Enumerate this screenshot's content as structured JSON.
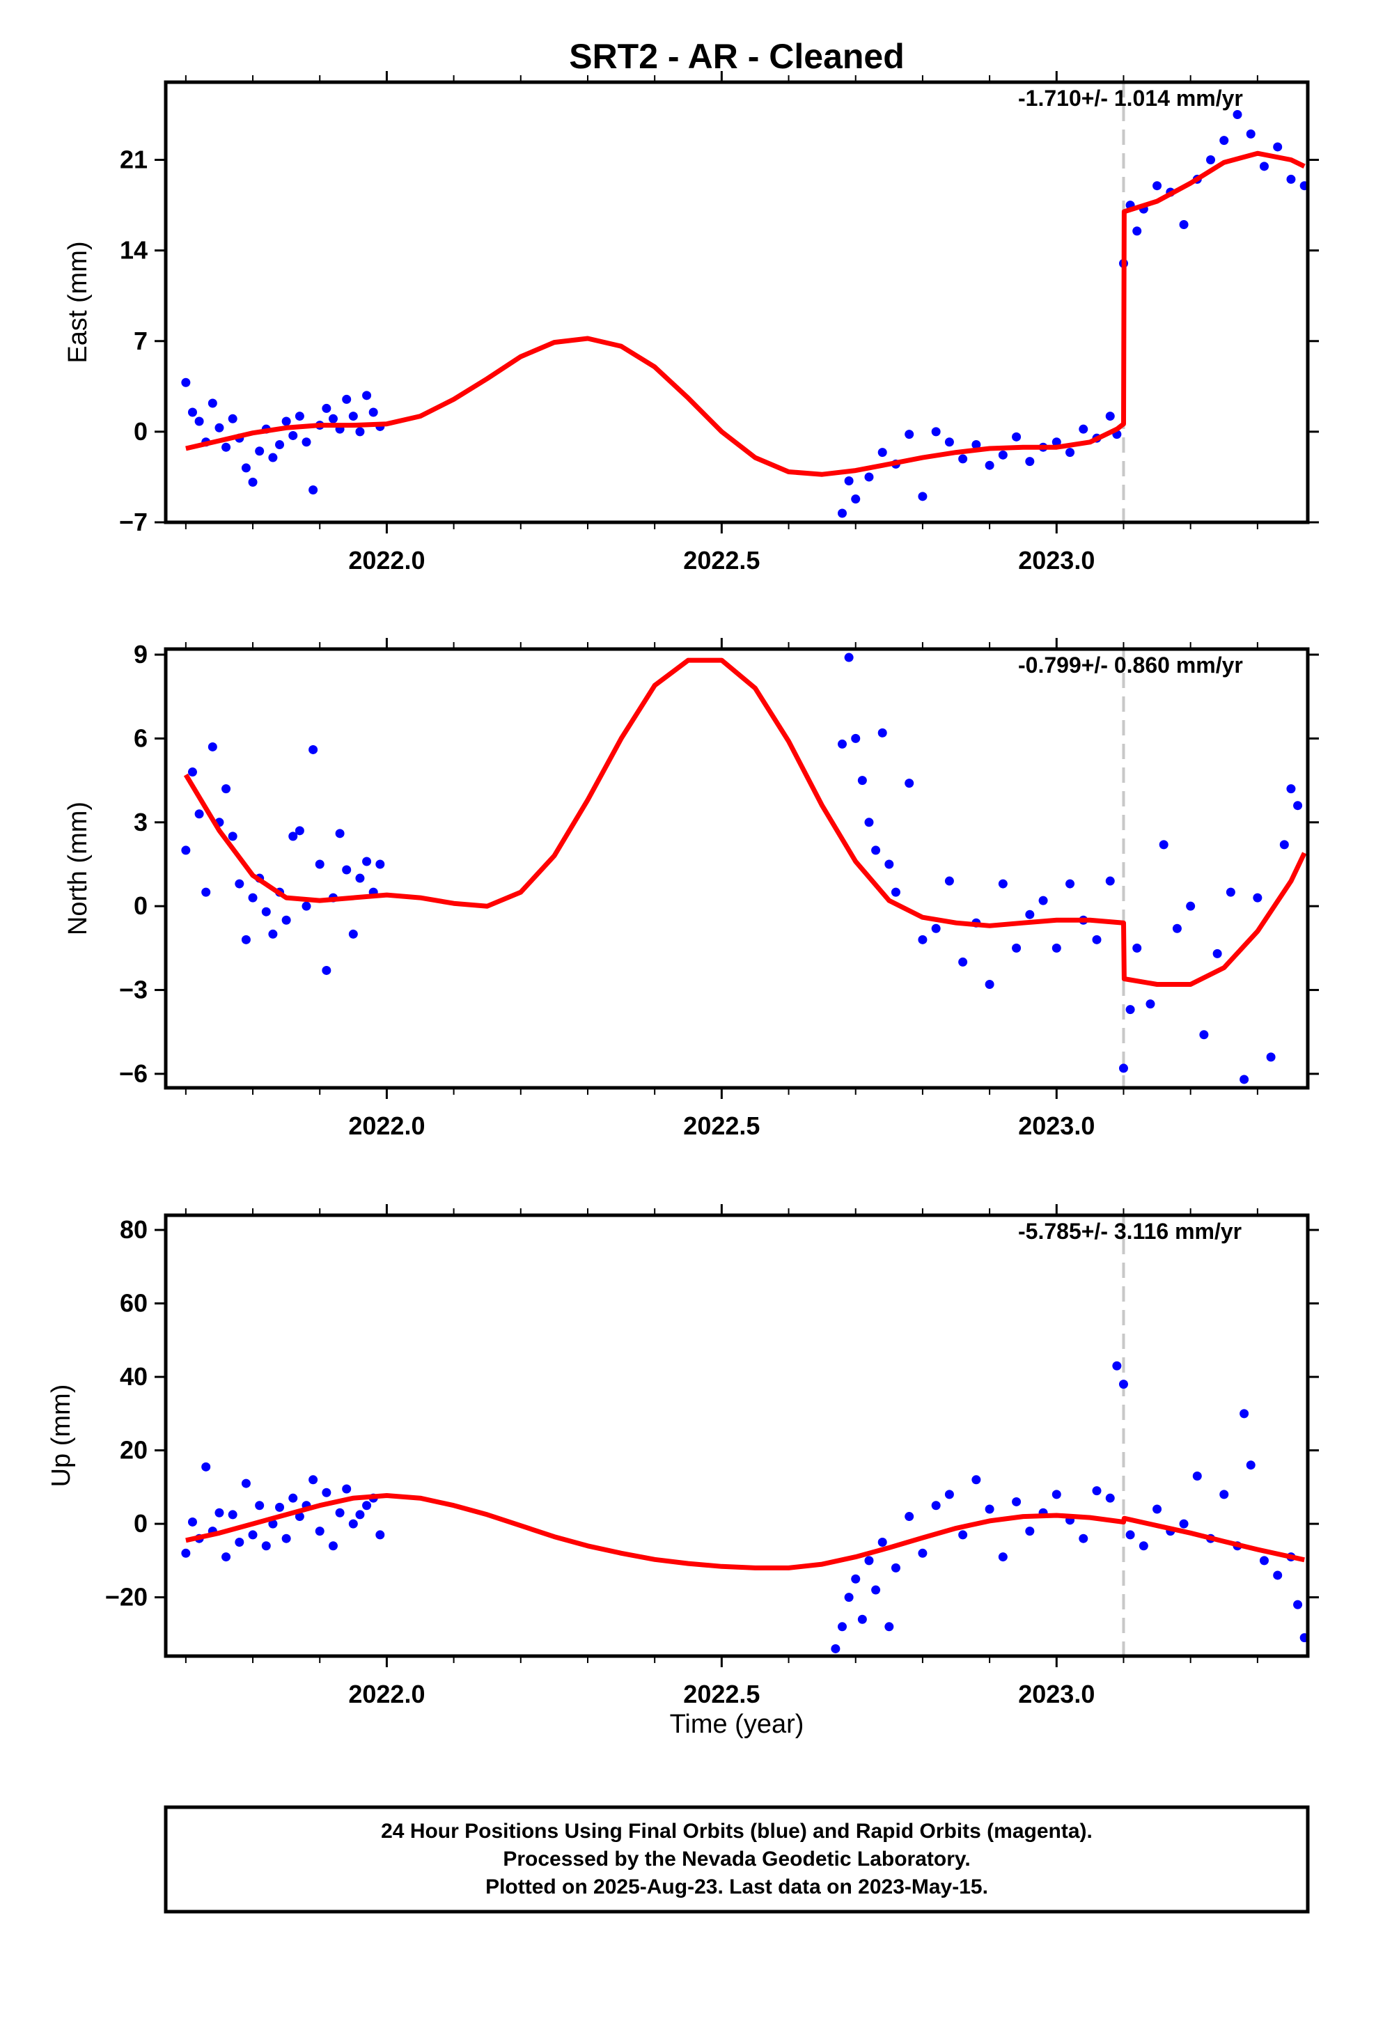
{
  "title": "SRT2  - AR - Cleaned",
  "x_axis_label": "Time (year)",
  "footer": {
    "lines": [
      "24 Hour Positions Using Final Orbits (blue) and Rapid Orbits (magenta).",
      "Processed by the Nevada Geodetic Laboratory.",
      "Plotted on 2025-Aug-23. Last data on 2023-May-15."
    ]
  },
  "colors": {
    "points": "#0000ff",
    "model": "#ff0000",
    "event_line": "#c8c8c8",
    "frame": "#000000"
  },
  "chart_data": [
    {
      "type": "scatter",
      "component": "east",
      "ylabel": "East (mm)",
      "rate_text": "-1.710+/- 1.014 mm/yr",
      "xlim": [
        2021.67,
        2023.375
      ],
      "ylim": [
        -7,
        27
      ],
      "yticks": [
        21,
        14,
        7,
        0,
        -7
      ],
      "xticks": [
        2022.0,
        2022.5,
        2023.0
      ],
      "xtick_labels": [
        "2022.0",
        "2022.5",
        "2023.0"
      ],
      "event_time": 2023.1,
      "series": [
        {
          "role": "observations",
          "x": [
            2021.7,
            2021.71,
            2021.72,
            2021.73,
            2021.74,
            2021.75,
            2021.76,
            2021.77,
            2021.78,
            2021.79,
            2021.8,
            2021.81,
            2021.82,
            2021.83,
            2021.84,
            2021.85,
            2021.86,
            2021.87,
            2021.88,
            2021.89,
            2021.9,
            2021.91,
            2021.92,
            2021.93,
            2021.94,
            2021.95,
            2021.96,
            2021.97,
            2021.98,
            2021.99,
            2022.68,
            2022.69,
            2022.7,
            2022.72,
            2022.74,
            2022.76,
            2022.78,
            2022.8,
            2022.82,
            2022.84,
            2022.86,
            2022.88,
            2022.9,
            2022.92,
            2022.94,
            2022.96,
            2022.98,
            2023.0,
            2023.02,
            2023.04,
            2023.06,
            2023.08,
            2023.09,
            2023.1,
            2023.11,
            2023.12,
            2023.13,
            2023.15,
            2023.17,
            2023.19,
            2023.21,
            2023.23,
            2023.25,
            2023.27,
            2023.29,
            2023.31,
            2023.33,
            2023.35,
            2023.37
          ],
          "y": [
            3.8,
            1.5,
            0.8,
            -0.8,
            2.2,
            0.3,
            -1.2,
            1.0,
            -0.5,
            -2.8,
            -3.9,
            -1.5,
            0.2,
            -2.0,
            -1.0,
            0.8,
            -0.3,
            1.2,
            -0.8,
            -4.5,
            0.5,
            1.8,
            1.0,
            0.2,
            2.5,
            1.2,
            0.0,
            2.8,
            1.5,
            0.4,
            -6.3,
            -3.8,
            -5.2,
            -3.5,
            -1.6,
            -2.5,
            -0.2,
            -5.0,
            0.0,
            -0.8,
            -2.1,
            -1.0,
            -2.6,
            -1.8,
            -0.4,
            -2.3,
            -1.2,
            -0.8,
            -1.6,
            0.2,
            -0.5,
            1.2,
            -0.2,
            13.0,
            17.5,
            15.5,
            17.2,
            19.0,
            18.5,
            16.0,
            19.5,
            21.0,
            22.5,
            24.5,
            23.0,
            20.5,
            22.0,
            19.5,
            19.0
          ]
        },
        {
          "role": "model",
          "x": [
            2021.7,
            2021.75,
            2021.8,
            2021.85,
            2021.9,
            2021.95,
            2022.0,
            2022.05,
            2022.1,
            2022.15,
            2022.2,
            2022.25,
            2022.3,
            2022.35,
            2022.4,
            2022.45,
            2022.5,
            2022.55,
            2022.6,
            2022.65,
            2022.7,
            2022.75,
            2022.8,
            2022.85,
            2022.9,
            2022.95,
            2023.0,
            2023.05,
            2023.09,
            2023.1,
            2023.101,
            2023.15,
            2023.2,
            2023.25,
            2023.3,
            2023.35,
            2023.37
          ],
          "y": [
            -1.3,
            -0.7,
            -0.1,
            0.3,
            0.5,
            0.5,
            0.6,
            1.2,
            2.5,
            4.1,
            5.8,
            6.9,
            7.2,
            6.6,
            5.0,
            2.6,
            0.0,
            -2.0,
            -3.1,
            -3.3,
            -3.0,
            -2.5,
            -2.0,
            -1.6,
            -1.3,
            -1.2,
            -1.2,
            -0.8,
            0.2,
            0.6,
            17.0,
            17.8,
            19.2,
            20.8,
            21.5,
            21.0,
            20.5
          ]
        }
      ]
    },
    {
      "type": "scatter",
      "component": "north",
      "ylabel": "North (mm)",
      "rate_text": "-0.799+/- 0.860 mm/yr",
      "xlim": [
        2021.67,
        2023.375
      ],
      "ylim": [
        -6.5,
        9.2
      ],
      "yticks": [
        9,
        6,
        3,
        0,
        -3,
        -6
      ],
      "xticks": [
        2022.0,
        2022.5,
        2023.0
      ],
      "xtick_labels": [
        "2022.0",
        "2022.5",
        "2023.0"
      ],
      "event_time": 2023.1,
      "series": [
        {
          "role": "observations",
          "x": [
            2021.7,
            2021.71,
            2021.72,
            2021.73,
            2021.74,
            2021.75,
            2021.76,
            2021.77,
            2021.78,
            2021.79,
            2021.8,
            2021.81,
            2021.82,
            2021.83,
            2021.84,
            2021.85,
            2021.86,
            2021.87,
            2021.88,
            2021.89,
            2021.9,
            2021.91,
            2021.92,
            2021.93,
            2021.94,
            2021.95,
            2021.96,
            2021.97,
            2021.98,
            2021.99,
            2022.68,
            2022.69,
            2022.7,
            2022.71,
            2022.72,
            2022.73,
            2022.74,
            2022.75,
            2022.76,
            2022.78,
            2022.8,
            2022.82,
            2022.84,
            2022.86,
            2022.88,
            2022.9,
            2022.92,
            2022.94,
            2022.96,
            2022.98,
            2023.0,
            2023.02,
            2023.04,
            2023.06,
            2023.08,
            2023.1,
            2023.11,
            2023.12,
            2023.14,
            2023.16,
            2023.18,
            2023.2,
            2023.22,
            2023.24,
            2023.26,
            2023.28,
            2023.3,
            2023.32,
            2023.34,
            2023.35,
            2023.36
          ],
          "y": [
            2.0,
            4.8,
            3.3,
            0.5,
            5.7,
            3.0,
            4.2,
            2.5,
            0.8,
            -1.2,
            0.3,
            1.0,
            -0.2,
            -1.0,
            0.5,
            -0.5,
            2.5,
            2.7,
            0.0,
            5.6,
            1.5,
            -2.3,
            0.3,
            2.6,
            1.3,
            -1.0,
            1.0,
            1.6,
            0.5,
            1.5,
            5.8,
            8.9,
            6.0,
            4.5,
            3.0,
            2.0,
            6.2,
            1.5,
            0.5,
            4.4,
            -1.2,
            -0.8,
            0.9,
            -2.0,
            -0.6,
            -2.8,
            0.8,
            -1.5,
            -0.3,
            0.2,
            -1.5,
            0.8,
            -0.5,
            -1.2,
            0.9,
            -5.8,
            -3.7,
            -1.5,
            -3.5,
            2.2,
            -0.8,
            0.0,
            -4.6,
            -1.7,
            0.5,
            -6.2,
            0.3,
            -5.4,
            2.2,
            4.2,
            3.6
          ]
        },
        {
          "role": "model",
          "x": [
            2021.7,
            2021.75,
            2021.8,
            2021.85,
            2021.9,
            2021.95,
            2022.0,
            2022.05,
            2022.1,
            2022.15,
            2022.2,
            2022.25,
            2022.3,
            2022.35,
            2022.4,
            2022.45,
            2022.5,
            2022.55,
            2022.6,
            2022.65,
            2022.7,
            2022.75,
            2022.8,
            2022.85,
            2022.9,
            2022.95,
            2023.0,
            2023.05,
            2023.1,
            2023.101,
            2023.15,
            2023.2,
            2023.25,
            2023.3,
            2023.35,
            2023.37
          ],
          "y": [
            4.7,
            2.7,
            1.1,
            0.3,
            0.2,
            0.3,
            0.4,
            0.3,
            0.1,
            0.0,
            0.5,
            1.8,
            3.8,
            6.0,
            7.9,
            8.8,
            8.8,
            7.8,
            5.9,
            3.6,
            1.6,
            0.2,
            -0.4,
            -0.6,
            -0.7,
            -0.6,
            -0.5,
            -0.5,
            -0.6,
            -2.6,
            -2.8,
            -2.8,
            -2.2,
            -0.9,
            0.9,
            1.9
          ]
        }
      ]
    },
    {
      "type": "scatter",
      "component": "up",
      "ylabel": "Up (mm)",
      "rate_text": "-5.785+/- 3.116 mm/yr",
      "xlim": [
        2021.67,
        2023.375
      ],
      "ylim": [
        -36,
        84
      ],
      "yticks": [
        80,
        60,
        40,
        20,
        0,
        -20
      ],
      "xticks": [
        2022.0,
        2022.5,
        2023.0
      ],
      "xtick_labels": [
        "2022.0",
        "2022.5",
        "2023.0"
      ],
      "event_time": 2023.1,
      "series": [
        {
          "role": "observations",
          "x": [
            2021.7,
            2021.71,
            2021.72,
            2021.73,
            2021.74,
            2021.75,
            2021.76,
            2021.77,
            2021.78,
            2021.79,
            2021.8,
            2021.81,
            2021.82,
            2021.83,
            2021.84,
            2021.85,
            2021.86,
            2021.87,
            2021.88,
            2021.89,
            2021.9,
            2021.91,
            2021.92,
            2021.93,
            2021.94,
            2021.95,
            2021.96,
            2021.97,
            2021.98,
            2021.99,
            2022.67,
            2022.68,
            2022.69,
            2022.7,
            2022.71,
            2022.72,
            2022.73,
            2022.74,
            2022.75,
            2022.76,
            2022.78,
            2022.8,
            2022.82,
            2022.84,
            2022.86,
            2022.88,
            2022.9,
            2022.92,
            2022.94,
            2022.96,
            2022.98,
            2023.0,
            2023.02,
            2023.04,
            2023.06,
            2023.08,
            2023.09,
            2023.1,
            2023.11,
            2023.13,
            2023.15,
            2023.17,
            2023.19,
            2023.21,
            2023.23,
            2023.25,
            2023.27,
            2023.28,
            2023.29,
            2023.31,
            2023.33,
            2023.35,
            2023.36,
            2023.37
          ],
          "y": [
            -8.0,
            0.5,
            -4.0,
            15.5,
            -2.0,
            3.0,
            -9.0,
            2.5,
            -5.0,
            11.0,
            -3.0,
            5.0,
            -6.0,
            0.0,
            4.5,
            -4.0,
            7.0,
            2.0,
            5.0,
            12.0,
            -2.0,
            8.5,
            -6.0,
            3.0,
            9.5,
            0.0,
            2.5,
            5.0,
            7.0,
            -3.0,
            -34.0,
            -28.0,
            -20.0,
            -15.0,
            -26.0,
            -10.0,
            -18.0,
            -5.0,
            -28.0,
            -12.0,
            2.0,
            -8.0,
            5.0,
            8.0,
            -3.0,
            12.0,
            4.0,
            -9.0,
            6.0,
            -2.0,
            3.0,
            8.0,
            1.0,
            -4.0,
            9.0,
            7.0,
            43.0,
            38.0,
            -3.0,
            -6.0,
            4.0,
            -2.0,
            0.0,
            13.0,
            -4.0,
            8.0,
            -6.0,
            30.0,
            16.0,
            -10.0,
            -14.0,
            -9.0,
            -22.0,
            -31.0
          ]
        },
        {
          "role": "model",
          "x": [
            2021.7,
            2021.75,
            2021.8,
            2021.85,
            2021.9,
            2021.95,
            2022.0,
            2022.05,
            2022.1,
            2022.15,
            2022.2,
            2022.25,
            2022.3,
            2022.35,
            2022.4,
            2022.45,
            2022.5,
            2022.55,
            2022.6,
            2022.65,
            2022.7,
            2022.75,
            2022.8,
            2022.85,
            2022.9,
            2022.95,
            2023.0,
            2023.05,
            2023.1,
            2023.101,
            2023.15,
            2023.2,
            2023.25,
            2023.3,
            2023.35,
            2023.37
          ],
          "y": [
            -4.5,
            -2.5,
            0.0,
            2.5,
            5.0,
            7.0,
            7.7,
            7.0,
            5.0,
            2.5,
            -0.5,
            -3.5,
            -6.0,
            -8.0,
            -9.7,
            -10.8,
            -11.6,
            -12.0,
            -12.0,
            -11.0,
            -9.0,
            -6.5,
            -3.8,
            -1.2,
            0.8,
            2.0,
            2.3,
            1.7,
            0.5,
            1.5,
            -0.5,
            -2.5,
            -4.8,
            -7.0,
            -9.0,
            -9.8
          ]
        }
      ]
    }
  ]
}
